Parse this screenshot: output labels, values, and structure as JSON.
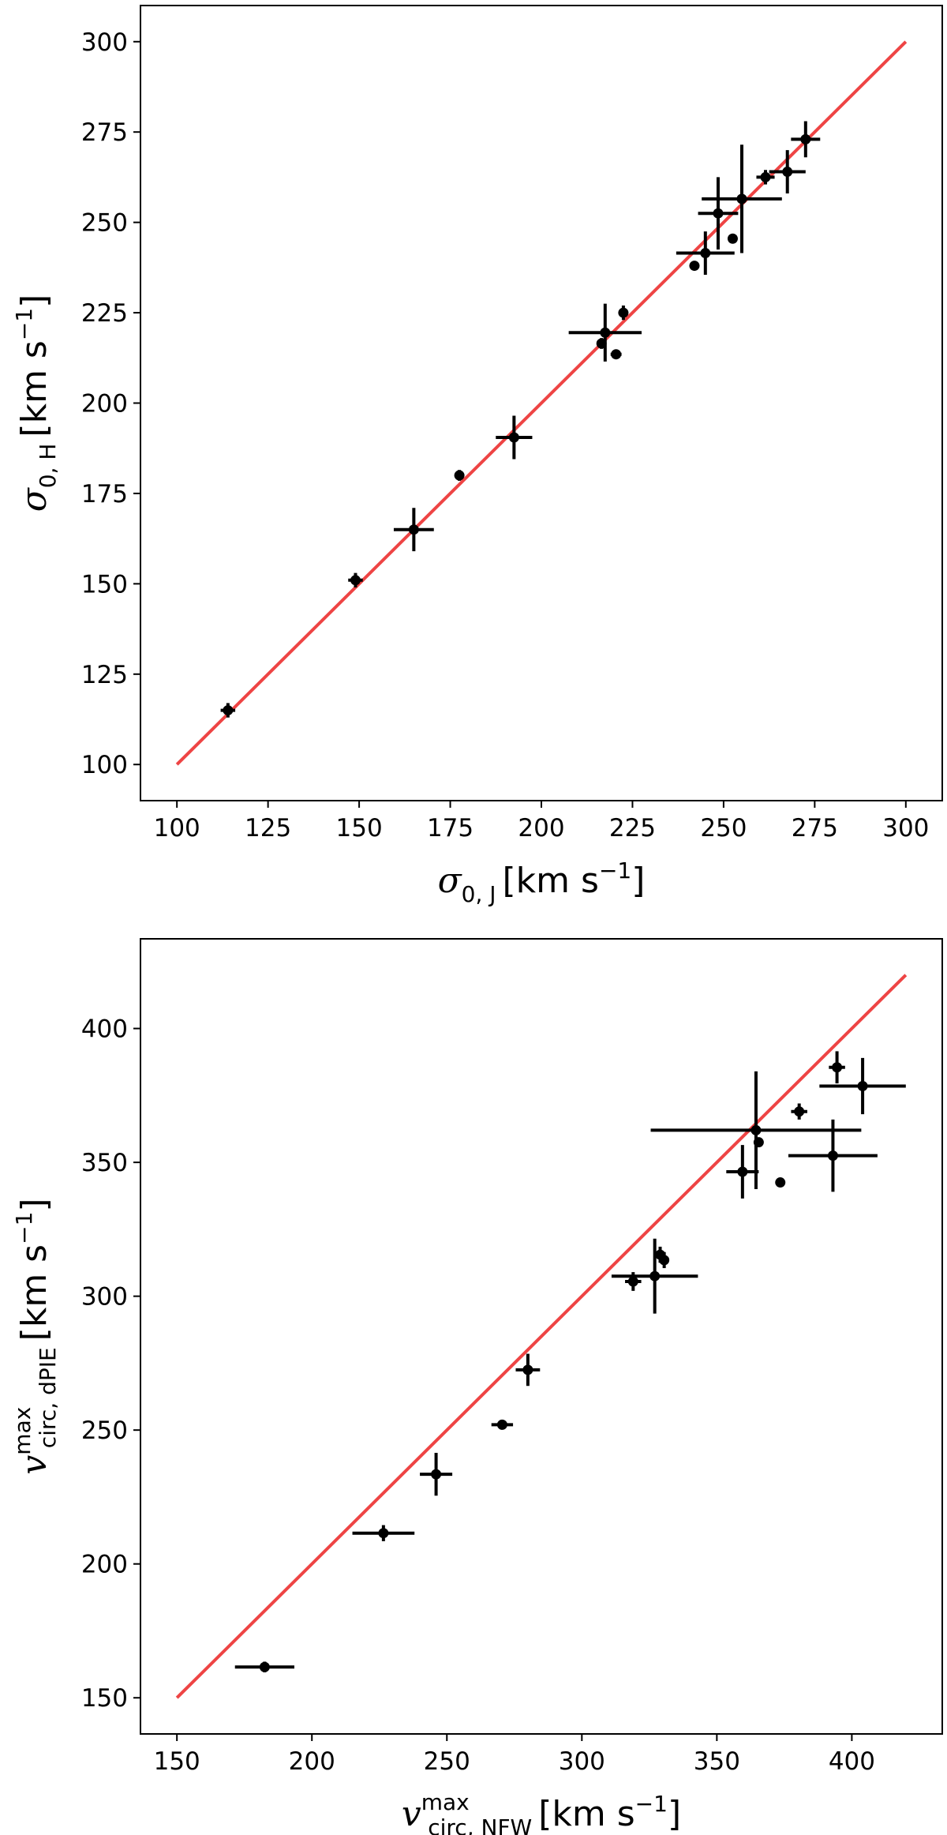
{
  "chart_data": [
    {
      "type": "scatter",
      "x": [
        100,
        300
      ],
      "xlim": [
        90,
        310
      ],
      "ylim": [
        90,
        310
      ],
      "xticks": [
        100,
        125,
        150,
        175,
        200,
        225,
        250,
        275,
        300
      ],
      "yticks": [
        100,
        125,
        150,
        175,
        200,
        225,
        250,
        275,
        300
      ],
      "xlabel": {
        "symbol": "σ",
        "sub": "0, J",
        "unit": "[km s",
        "exp": "−1",
        "close": "]"
      },
      "ylabel": {
        "symbol": "σ",
        "sub": "0, H",
        "unit": "[km s",
        "exp": "−1",
        "close": "]"
      },
      "line": {
        "x": [
          100,
          300
        ],
        "y": [
          100,
          300
        ],
        "color": "#ee4444"
      },
      "points": [
        {
          "x": 114,
          "y": 115,
          "xerr": 2,
          "yerr": 2
        },
        {
          "x": 149,
          "y": 151,
          "xerr": 2,
          "yerr": 2
        },
        {
          "x": 165,
          "y": 165,
          "xerr": 5.5,
          "yerr": 6
        },
        {
          "x": 177.5,
          "y": 180,
          "xerr": 1,
          "yerr": 1.5
        },
        {
          "x": 192.5,
          "y": 190.5,
          "xerr": 5,
          "yerr": 6
        },
        {
          "x": 216.5,
          "y": 216.5,
          "xerr": 1,
          "yerr": 1.5
        },
        {
          "x": 217.5,
          "y": 219.5,
          "xerr": 10,
          "yerr": 8
        },
        {
          "x": 220.5,
          "y": 213.5,
          "xerr": 1.5,
          "yerr": 1
        },
        {
          "x": 222.5,
          "y": 225,
          "xerr": 1,
          "yerr": 2
        },
        {
          "x": 242,
          "y": 238,
          "xerr": 0,
          "yerr": 0
        },
        {
          "x": 245,
          "y": 241.5,
          "xerr": 8,
          "yerr": 6
        },
        {
          "x": 248.5,
          "y": 252.5,
          "xerr": 5.5,
          "yerr": 10
        },
        {
          "x": 252.5,
          "y": 245.5,
          "xerr": 1,
          "yerr": 1
        },
        {
          "x": 255,
          "y": 256.5,
          "xerr": 11,
          "yerr": 15
        },
        {
          "x": 261.5,
          "y": 262.5,
          "xerr": 2.5,
          "yerr": 2
        },
        {
          "x": 267.5,
          "y": 264,
          "xerr": 5,
          "yerr": 6
        },
        {
          "x": 272.5,
          "y": 273,
          "xerr": 4,
          "yerr": 5
        }
      ]
    },
    {
      "type": "scatter",
      "x": [
        150,
        420
      ],
      "xlim": [
        136.5,
        433.5
      ],
      "ylim": [
        136.5,
        433.5
      ],
      "xticks": [
        150,
        200,
        250,
        300,
        350,
        400
      ],
      "yticks": [
        150,
        200,
        250,
        300,
        350,
        400
      ],
      "xlabel": {
        "symbol": "v",
        "sup": "max",
        "sub": "circ, NFW",
        "unit": "[km s",
        "exp": "−1",
        "close": "]"
      },
      "ylabel": {
        "symbol": "v",
        "sup": "max",
        "sub": "circ, dPIE",
        "unit": "[km s",
        "exp": "−1",
        "close": "]"
      },
      "line": {
        "x": [
          150,
          420
        ],
        "y": [
          150,
          420
        ],
        "color": "#ee4444"
      },
      "points": [
        {
          "x": 182.5,
          "y": 161.5,
          "xerr": 11,
          "yerr": 2
        },
        {
          "x": 226.5,
          "y": 211.5,
          "xerr": 11.5,
          "yerr": 3
        },
        {
          "x": 246,
          "y": 233.5,
          "xerr": 6,
          "yerr": 8
        },
        {
          "x": 270.5,
          "y": 252,
          "xerr": 4,
          "yerr": 1.5
        },
        {
          "x": 280,
          "y": 272.5,
          "xerr": 4.5,
          "yerr": 6
        },
        {
          "x": 319,
          "y": 305.5,
          "xerr": 3,
          "yerr": 3.5
        },
        {
          "x": 327,
          "y": 307.5,
          "xerr": 16,
          "yerr": 14
        },
        {
          "x": 329,
          "y": 315.5,
          "xerr": 1,
          "yerr": 3
        },
        {
          "x": 330.5,
          "y": 313.5,
          "xerr": 1,
          "yerr": 3
        },
        {
          "x": 359.5,
          "y": 346.5,
          "xerr": 6,
          "yerr": 10
        },
        {
          "x": 364.5,
          "y": 362,
          "xerr": 39,
          "yerr": 22
        },
        {
          "x": 365.5,
          "y": 357.5,
          "xerr": 0,
          "yerr": 0
        },
        {
          "x": 373.5,
          "y": 342.5,
          "xerr": 0,
          "yerr": 0
        },
        {
          "x": 380.5,
          "y": 369,
          "xerr": 3,
          "yerr": 3
        },
        {
          "x": 393,
          "y": 352.5,
          "xerr": 16.5,
          "yerr": 13.5
        },
        {
          "x": 394.5,
          "y": 385.5,
          "xerr": 3,
          "yerr": 6
        },
        {
          "x": 404,
          "y": 378.5,
          "xerr": 16,
          "yerr": 10.5
        }
      ]
    }
  ]
}
